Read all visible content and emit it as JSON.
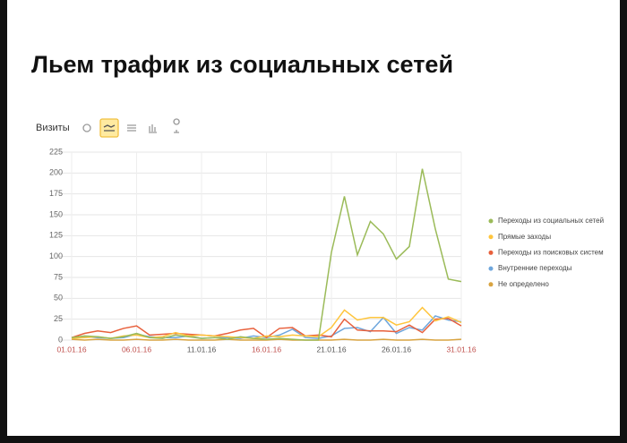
{
  "header": {
    "title": "Льем трафик из социальных сетей"
  },
  "chart_data": {
    "type": "line",
    "title": "Визиты",
    "categories": [
      "01.01.16",
      null,
      null,
      null,
      null,
      "06.01.16",
      null,
      null,
      null,
      null,
      "11.01.16",
      null,
      null,
      null,
      null,
      "16.01.16",
      null,
      null,
      null,
      null,
      "21.01.16",
      null,
      null,
      null,
      null,
      "26.01.16",
      null,
      null,
      null,
      null,
      "31.01.16"
    ],
    "category_label_colors": [
      "#c0504d",
      null,
      null,
      null,
      null,
      "#c0504d",
      null,
      null,
      null,
      null,
      "#555555",
      null,
      null,
      null,
      null,
      "#c0504d",
      null,
      null,
      null,
      null,
      "#555555",
      null,
      null,
      null,
      null,
      "#555555",
      null,
      null,
      null,
      null,
      "#c0504d"
    ],
    "series": [
      {
        "name": "Переходы из социальных сетей",
        "color": "#9bbb59",
        "values": [
          3,
          5,
          4,
          2,
          4,
          8,
          3,
          2,
          6,
          4,
          2,
          3,
          1,
          4,
          2,
          1,
          2,
          1,
          0,
          0,
          105,
          172,
          102,
          142,
          127,
          97,
          112,
          205,
          133,
          73,
          70
        ]
      },
      {
        "name": "Прямые заходы",
        "color": "#ffc53d",
        "values": [
          2,
          3,
          4,
          2,
          5,
          6,
          3,
          4,
          9,
          5,
          6,
          5,
          4,
          3,
          2,
          5,
          4,
          6,
          5,
          4,
          15,
          36,
          24,
          27,
          27,
          18,
          22,
          39,
          23,
          28,
          21
        ]
      },
      {
        "name": "Переходы из поисковых систем",
        "color": "#e8603c",
        "values": [
          3,
          8,
          11,
          9,
          14,
          17,
          6,
          7,
          8,
          7,
          6,
          5,
          8,
          12,
          14,
          3,
          14,
          15,
          5,
          6,
          4,
          25,
          12,
          11,
          11,
          10,
          18,
          9,
          25,
          26,
          17
        ]
      },
      {
        "name": "Внутренние переходы",
        "color": "#6ea6dc",
        "values": [
          2,
          4,
          3,
          2,
          3,
          7,
          4,
          3,
          3,
          5,
          2,
          3,
          3,
          2,
          5,
          3,
          6,
          13,
          3,
          2,
          5,
          14,
          15,
          10,
          27,
          8,
          15,
          12,
          29,
          24,
          22
        ]
      },
      {
        "name": "Не определено",
        "color": "#d9a441",
        "values": [
          1,
          0,
          1,
          0,
          0,
          1,
          0,
          0,
          1,
          0,
          0,
          0,
          1,
          0,
          0,
          0,
          1,
          0,
          0,
          0,
          0,
          1,
          0,
          0,
          1,
          0,
          0,
          1,
          0,
          0,
          1
        ]
      }
    ],
    "ylim": [
      0,
      225
    ],
    "yticks": [
      0,
      25,
      50,
      75,
      100,
      125,
      150,
      175,
      200,
      225
    ],
    "grid": true,
    "legend": "right"
  }
}
